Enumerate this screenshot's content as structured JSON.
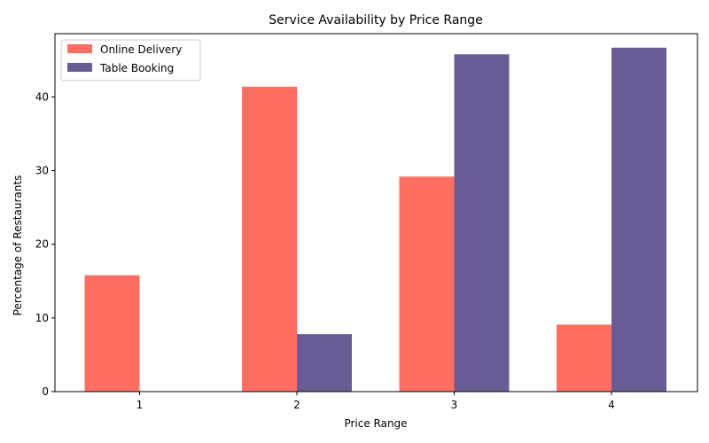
{
  "chart_data": {
    "type": "bar",
    "title": "Service Availability by Price Range",
    "xlabel": "Price Range",
    "ylabel": "Percentage of Restaurants",
    "categories": [
      "1",
      "2",
      "3",
      "4"
    ],
    "series": [
      {
        "name": "Online Delivery",
        "values": [
          15.8,
          41.4,
          29.2,
          9.1
        ],
        "color": "#ff6f61"
      },
      {
        "name": "Table Booking",
        "values": [
          0.0,
          7.8,
          45.8,
          46.7
        ],
        "color": "#6b5b95"
      }
    ],
    "ylim": [
      0,
      48.6
    ],
    "yticks": [
      0,
      10,
      20,
      30,
      40
    ],
    "grid": false,
    "legend_position": "upper-left"
  }
}
